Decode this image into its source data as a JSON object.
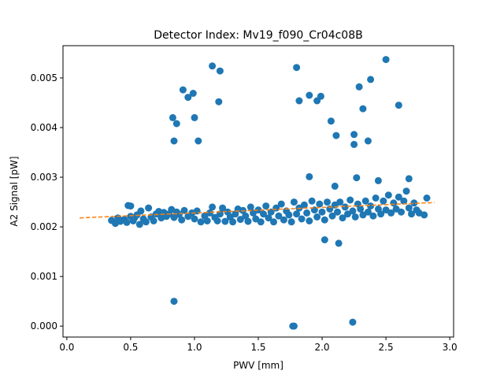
{
  "chart_data": {
    "type": "scatter",
    "title": "Detector Index: Mv19_f090_Cr04c08B",
    "xlabel": "PWV [mm]",
    "ylabel": "A2 Signal [pW]",
    "xlim": [
      -0.03,
      3.03
    ],
    "ylim": [
      -0.00022,
      0.00565
    ],
    "xticks": [
      0.0,
      0.5,
      1.0,
      1.5,
      2.0,
      2.5,
      3.0
    ],
    "xtick_labels": [
      "0.0",
      "0.5",
      "1.0",
      "1.5",
      "2.0",
      "2.5",
      "3.0"
    ],
    "yticks": [
      0.0,
      0.001,
      0.002,
      0.003,
      0.004,
      0.005
    ],
    "ytick_labels": [
      "0.000",
      "0.001",
      "0.002",
      "0.003",
      "0.004",
      "0.005"
    ],
    "grid": false,
    "series": [
      {
        "name": "data",
        "kind": "scatter",
        "color": "#1f77b4",
        "points": [
          [
            0.35,
            0.00213
          ],
          [
            0.38,
            0.00207
          ],
          [
            0.4,
            0.00218
          ],
          [
            0.42,
            0.00211
          ],
          [
            0.45,
            0.00215
          ],
          [
            0.47,
            0.00209
          ],
          [
            0.48,
            0.00243
          ],
          [
            0.5,
            0.00221
          ],
          [
            0.5,
            0.00242
          ],
          [
            0.52,
            0.00212
          ],
          [
            0.53,
            0.00218
          ],
          [
            0.55,
            0.00224
          ],
          [
            0.57,
            0.00205
          ],
          [
            0.58,
            0.00232
          ],
          [
            0.6,
            0.00216
          ],
          [
            0.62,
            0.0021
          ],
          [
            0.64,
            0.00238
          ],
          [
            0.66,
            0.0022
          ],
          [
            0.68,
            0.00212
          ],
          [
            0.7,
            0.00226
          ],
          [
            0.72,
            0.00231
          ],
          [
            0.74,
            0.00218
          ],
          [
            0.76,
            0.00229
          ],
          [
            0.78,
            0.00221
          ],
          [
            0.8,
            0.00226
          ],
          [
            0.82,
            0.00235
          ],
          [
            0.84,
            0.00219
          ],
          [
            0.86,
            0.0023
          ],
          [
            0.88,
            0.00225
          ],
          [
            0.9,
            0.00214
          ],
          [
            0.92,
            0.00233
          ],
          [
            0.95,
            0.00221
          ],
          [
            0.98,
            0.00228
          ],
          [
            1.0,
            0.00216
          ],
          [
            1.02,
            0.00232
          ],
          [
            1.05,
            0.0021
          ],
          [
            1.08,
            0.00222
          ],
          [
            1.1,
            0.00212
          ],
          [
            1.12,
            0.00228
          ],
          [
            1.14,
            0.0024
          ],
          [
            1.16,
            0.00219
          ],
          [
            1.18,
            0.00212
          ],
          [
            1.2,
            0.00226
          ],
          [
            1.22,
            0.00238
          ],
          [
            1.24,
            0.00211
          ],
          [
            1.26,
            0.0023
          ],
          [
            1.28,
            0.0022
          ],
          [
            1.3,
            0.0021
          ],
          [
            1.32,
            0.00226
          ],
          [
            1.34,
            0.00236
          ],
          [
            1.36,
            0.00215
          ],
          [
            1.38,
            0.00233
          ],
          [
            1.4,
            0.00222
          ],
          [
            1.42,
            0.00211
          ],
          [
            1.44,
            0.0024
          ],
          [
            1.46,
            0.00228
          ],
          [
            1.48,
            0.00216
          ],
          [
            1.5,
            0.00234
          ],
          [
            1.52,
            0.0021
          ],
          [
            1.54,
            0.00226
          ],
          [
            1.56,
            0.00242
          ],
          [
            1.58,
            0.00218
          ],
          [
            1.6,
            0.0023
          ],
          [
            1.62,
            0.0021
          ],
          [
            1.64,
            0.00238
          ],
          [
            1.66,
            0.00222
          ],
          [
            1.68,
            0.00246
          ],
          [
            1.7,
            0.00214
          ],
          [
            1.72,
            0.00232
          ],
          [
            1.74,
            0.00224
          ],
          [
            1.76,
            0.0021
          ],
          [
            1.78,
            0.0025
          ],
          [
            1.8,
            0.00226
          ],
          [
            1.82,
            0.00238
          ],
          [
            1.84,
            0.00216
          ],
          [
            1.86,
            0.00244
          ],
          [
            1.88,
            0.00228
          ],
          [
            1.9,
            0.00212
          ],
          [
            1.92,
            0.00252
          ],
          [
            1.94,
            0.00234
          ],
          [
            1.96,
            0.0022
          ],
          [
            1.98,
            0.00246
          ],
          [
            2.0,
            0.0023
          ],
          [
            2.02,
            0.00214
          ],
          [
            2.04,
            0.0025
          ],
          [
            2.06,
            0.00236
          ],
          [
            2.08,
            0.00222
          ],
          [
            2.1,
            0.00244
          ],
          [
            2.12,
            0.0023
          ],
          [
            2.14,
            0.0025
          ],
          [
            2.16,
            0.00218
          ],
          [
            2.18,
            0.0024
          ],
          [
            2.2,
            0.00226
          ],
          [
            2.22,
            0.00254
          ],
          [
            2.24,
            0.00232
          ],
          [
            2.26,
            0.0022
          ],
          [
            2.28,
            0.00246
          ],
          [
            2.3,
            0.00236
          ],
          [
            2.32,
            0.00224
          ],
          [
            2.34,
            0.00252
          ],
          [
            2.36,
            0.0023
          ],
          [
            2.38,
            0.00242
          ],
          [
            2.4,
            0.00222
          ],
          [
            2.42,
            0.00258
          ],
          [
            2.44,
            0.00236
          ],
          [
            2.46,
            0.00226
          ],
          [
            2.48,
            0.00252
          ],
          [
            2.5,
            0.00234
          ],
          [
            2.52,
            0.00264
          ],
          [
            2.54,
            0.00228
          ],
          [
            2.56,
            0.00248
          ],
          [
            2.58,
            0.00236
          ],
          [
            2.6,
            0.0026
          ],
          [
            2.62,
            0.0023
          ],
          [
            2.64,
            0.00252
          ],
          [
            2.66,
            0.00272
          ],
          [
            2.68,
            0.00238
          ],
          [
            2.7,
            0.00226
          ],
          [
            2.72,
            0.00248
          ],
          [
            2.74,
            0.00234
          ],
          [
            2.76,
            0.00228
          ],
          [
            2.8,
            0.00224
          ],
          [
            2.82,
            0.00258
          ],
          [
            0.83,
            0.0042
          ],
          [
            0.84,
            0.00373
          ],
          [
            0.86,
            0.00408
          ],
          [
            0.91,
            0.00476
          ],
          [
            0.95,
            0.00461
          ],
          [
            0.99,
            0.00469
          ],
          [
            1.0,
            0.0042
          ],
          [
            1.03,
            0.00373
          ],
          [
            1.14,
            0.00524
          ],
          [
            1.19,
            0.00452
          ],
          [
            1.2,
            0.00514
          ],
          [
            1.8,
            0.00521
          ],
          [
            1.82,
            0.00454
          ],
          [
            1.9,
            0.00465
          ],
          [
            1.96,
            0.00454
          ],
          [
            1.99,
            0.00463
          ],
          [
            2.07,
            0.00413
          ],
          [
            2.11,
            0.00384
          ],
          [
            2.25,
            0.00386
          ],
          [
            2.25,
            0.00366
          ],
          [
            2.29,
            0.00482
          ],
          [
            2.32,
            0.00438
          ],
          [
            2.36,
            0.00373
          ],
          [
            2.38,
            0.00497
          ],
          [
            2.5,
            0.00537
          ],
          [
            2.6,
            0.00445
          ],
          [
            1.9,
            0.00301
          ],
          [
            2.1,
            0.00282
          ],
          [
            2.27,
            0.00299
          ],
          [
            2.44,
            0.00293
          ],
          [
            2.68,
            0.00297
          ],
          [
            2.02,
            0.00174
          ],
          [
            2.13,
            0.00167
          ],
          [
            0.84,
            0.0005
          ],
          [
            2.24,
            8e-05
          ],
          [
            1.77,
            0.0
          ],
          [
            1.78,
            0.0
          ]
        ]
      },
      {
        "name": "fit",
        "kind": "line",
        "style": "dashed",
        "color": "#ff7f0e",
        "points": [
          [
            0.1,
            0.00218
          ],
          [
            2.88,
            0.00249
          ]
        ]
      }
    ]
  }
}
